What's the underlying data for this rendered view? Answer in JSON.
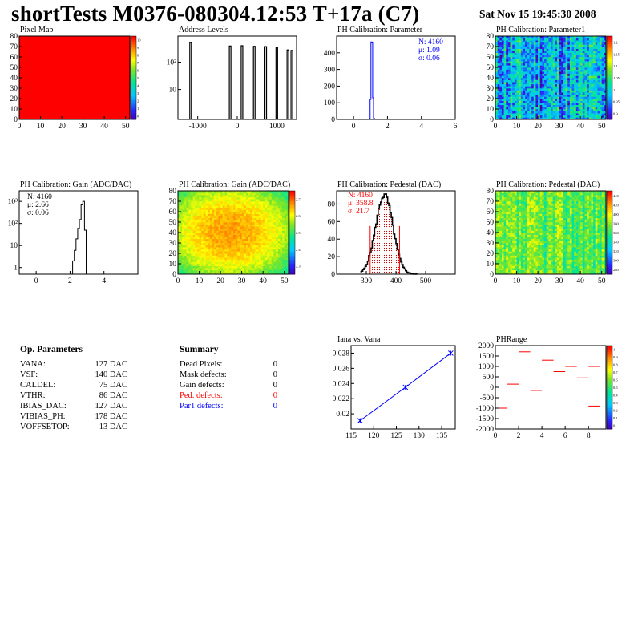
{
  "header": {
    "title": "shortTests M0376-080304.12:53 T+17a (C7)",
    "date": "Sat Nov 15 19:45:30 2008"
  },
  "op_parameters": {
    "title": "Op. Parameters",
    "rows": [
      {
        "name": "VANA:",
        "value": "127 DAC"
      },
      {
        "name": "VSF:",
        "value": "140 DAC"
      },
      {
        "name": "CALDEL:",
        "value": "75 DAC"
      },
      {
        "name": "VTHR:",
        "value": "86 DAC"
      },
      {
        "name": "IBIAS_DAC:",
        "value": "127 DAC"
      },
      {
        "name": "VIBIAS_PH:",
        "value": "178 DAC"
      },
      {
        "name": "VOFFSETOP:",
        "value": "13 DAC"
      }
    ]
  },
  "summary": {
    "title": "Summary",
    "rows": [
      {
        "name": "Dead Pixels:",
        "value": "0",
        "color": "#000000"
      },
      {
        "name": "Mask defects:",
        "value": "0",
        "color": "#000000"
      },
      {
        "name": "Gain defects:",
        "value": "0",
        "color": "#000000"
      },
      {
        "name": "Ped. defects:",
        "value": "0",
        "color": "#ff0000"
      },
      {
        "name": "Par1 defects:",
        "value": "0",
        "color": "#0000ff"
      }
    ]
  },
  "chart_data": [
    {
      "id": "pixel-map",
      "type": "heatmap",
      "title": "Pixel Map",
      "xlim": [
        0,
        52
      ],
      "ylim": [
        0,
        80
      ],
      "xticks": [
        0,
        10,
        20,
        30,
        40,
        50
      ],
      "yticks": [
        0,
        10,
        20,
        30,
        40,
        50,
        60,
        70,
        80
      ],
      "fill": "#ff0000",
      "zlim": [
        0,
        10
      ],
      "palette_ticks": [
        "10",
        "9",
        "8",
        "7",
        "6",
        "5",
        "4",
        "3",
        "2",
        "1",
        "0"
      ]
    },
    {
      "id": "address-levels",
      "type": "bar",
      "title": "Address Levels",
      "xlim": [
        -1500,
        1500
      ],
      "log_y": true,
      "ylim": [
        0.8,
        900
      ],
      "xticks": [
        {
          "v": -1000,
          "l": "-1000"
        },
        {
          "v": 0,
          "l": "0"
        },
        {
          "v": 1000,
          "l": "1000"
        }
      ],
      "yticks": [
        {
          "v": 10,
          "l": "10"
        },
        {
          "v": 100,
          "l": "10²"
        }
      ],
      "peaks": [
        {
          "x": -1180,
          "y": 520
        },
        {
          "x": -180,
          "y": 390
        },
        {
          "x": 120,
          "y": 400
        },
        {
          "x": 430,
          "y": 380
        },
        {
          "x": 720,
          "y": 370
        },
        {
          "x": 1000,
          "y": 360
        },
        {
          "x": 1280,
          "y": 280
        },
        {
          "x": 1380,
          "y": 270
        }
      ]
    },
    {
      "id": "ph-param",
      "type": "bar",
      "title": "PH Calibration: Parameter",
      "xlim": [
        -1,
        6
      ],
      "ylim": [
        0,
        500
      ],
      "xticks": [
        0,
        2,
        4,
        6
      ],
      "yticks": [
        0,
        100,
        200,
        300,
        400
      ],
      "x": [
        0.95,
        1.0,
        1.05,
        1.1,
        1.15,
        1.2
      ],
      "values": [
        5,
        120,
        465,
        460,
        130,
        8
      ],
      "color": "#0000ff",
      "stats": [
        "N: 4160",
        "μ: 1.09",
        "σ: 0.06"
      ],
      "stats_color": "#0000ff"
    },
    {
      "id": "ph-param1",
      "type": "heatmap",
      "title": "PH Calibration: Parameter1",
      "xlim": [
        0,
        52
      ],
      "ylim": [
        0,
        80
      ],
      "xticks": [
        0,
        10,
        20,
        30,
        40,
        50
      ],
      "yticks": [
        0,
        10,
        20,
        30,
        40,
        50,
        60,
        70,
        80
      ],
      "zlim": [
        0.85,
        1.25
      ],
      "palette_ticks": [
        "1.2",
        "1.15",
        "1.1",
        "1.05",
        "1",
        "0.95",
        "0.9"
      ],
      "mean": 0.97,
      "spread": 0.1,
      "seed": 11
    },
    {
      "id": "gain-1d",
      "type": "bar",
      "title": "PH Calibration: Gain (ADC/DAC)",
      "xlim": [
        -1,
        6
      ],
      "log_y": true,
      "ylim": [
        0.5,
        3000
      ],
      "xticks": [
        0,
        2,
        4
      ],
      "yticks": [
        {
          "v": 1,
          "l": "1"
        },
        {
          "v": 10,
          "l": "10"
        },
        {
          "v": 100,
          "l": "10²"
        },
        {
          "v": 1000,
          "l": "10³"
        }
      ],
      "x": [
        2.2,
        2.3,
        2.4,
        2.5,
        2.6,
        2.7,
        2.8,
        2.9
      ],
      "values": [
        2,
        6,
        20,
        60,
        150,
        700,
        1000,
        50
      ],
      "color": "#000000",
      "stats": [
        "N: 4160",
        "μ: 2.66",
        "σ: 0.06"
      ],
      "stats_color": "#000000"
    },
    {
      "id": "gain-map",
      "type": "heatmap",
      "title": "PH Calibration: Gain (ADC/DAC)",
      "xlim": [
        0,
        52
      ],
      "ylim": [
        0,
        80
      ],
      "xticks": [
        0,
        10,
        20,
        30,
        40,
        50
      ],
      "yticks": [
        0,
        10,
        20,
        30,
        40,
        50,
        60,
        70,
        80
      ],
      "zlim": [
        2.25,
        2.75
      ],
      "palette_ticks": [
        "2.7",
        "2.6",
        "2.5",
        "2.4",
        "2.3"
      ],
      "center": [
        24,
        40
      ],
      "mean": 2.62,
      "spread": 0.04,
      "seed": 23
    },
    {
      "id": "pedestal-1d",
      "type": "bar",
      "title": "PH Calibration: Pedestal (DAC)",
      "xlim": [
        200,
        600
      ],
      "ylim": [
        0,
        95
      ],
      "xticks": [
        300,
        400,
        500
      ],
      "yticks": [
        0,
        20,
        40,
        60,
        80
      ],
      "mu": 358.8,
      "sigma": 21.7,
      "peak": 90,
      "cut_lines": [
        313,
        412
      ],
      "stats": [
        "N: 4160",
        "μ: 358.8",
        "σ: 21.7"
      ],
      "stats_color": "#ff0000"
    },
    {
      "id": "pedestal-map",
      "type": "heatmap",
      "title": "PH Calibration: Pedestal (DAC)",
      "xlim": [
        0,
        52
      ],
      "ylim": [
        0,
        80
      ],
      "xticks": [
        0,
        10,
        20,
        30,
        40,
        50
      ],
      "yticks": [
        0,
        10,
        20,
        30,
        40,
        50,
        60,
        70,
        80
      ],
      "zlim": [
        260,
        440
      ],
      "palette_ticks": [
        "440",
        "420",
        "400",
        "380",
        "360",
        "340",
        "320",
        "300",
        "280"
      ],
      "mean": 360,
      "spread": 25,
      "seed": 37
    },
    {
      "id": "iana-vana",
      "type": "line",
      "title": "Iana vs. Vana",
      "xlim": [
        115,
        138
      ],
      "ylim": [
        0.018,
        0.029
      ],
      "xticks": [
        115,
        120,
        125,
        130,
        135
      ],
      "yticks": [
        0.02,
        0.022,
        0.024,
        0.026,
        0.028
      ],
      "x": [
        117,
        127,
        137
      ],
      "y": [
        0.0191,
        0.0235,
        0.028
      ],
      "color": "#0000ff"
    },
    {
      "id": "ph-range",
      "type": "line",
      "title": "PHRange",
      "xlim": [
        0,
        9.5
      ],
      "ylim": [
        -2000,
        2000
      ],
      "xticks": [
        0,
        2,
        4,
        6,
        8
      ],
      "yticks": [
        -2000,
        -1500,
        -1000,
        -500,
        0,
        500,
        1000,
        1500,
        2000
      ],
      "zlim": [
        0,
        1
      ],
      "palette_ticks": [
        "1",
        "0.9",
        "0.8",
        "0.7",
        "0.6",
        "0.5",
        "0.4",
        "0.3",
        "0.2",
        "0.1",
        "0"
      ],
      "segments": [
        {
          "x": 0,
          "y": -1000
        },
        {
          "x": 1,
          "y": 150
        },
        {
          "x": 2,
          "y": 1700
        },
        {
          "x": 3,
          "y": -150
        },
        {
          "x": 4,
          "y": 1300
        },
        {
          "x": 5,
          "y": 750
        },
        {
          "x": 6,
          "y": 1000
        },
        {
          "x": 7,
          "y": 450
        },
        {
          "x": 8,
          "y": 1000
        },
        {
          "x": 8,
          "y": -900
        }
      ],
      "color": "#ff0000"
    }
  ]
}
